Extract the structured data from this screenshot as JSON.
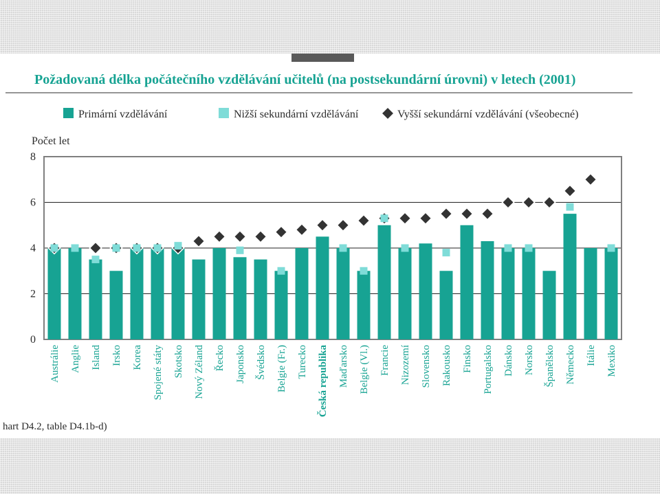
{
  "chart_data": {
    "type": "bar",
    "title": "Požadovaná délka počátečního vzdělávání učitelů (na postsekundární úrovni) v letech (2001)",
    "ylabel": "Počet let",
    "ylim": [
      0,
      8
    ],
    "yticks": [
      "0",
      "2",
      "4",
      "6",
      "8"
    ],
    "grid": true,
    "legend_position": "top",
    "colors": {
      "primary": "#17a393",
      "lower_secondary": "#7fdcd8",
      "upper_secondary": "#333333"
    },
    "categories": [
      "Austrálie",
      "Anglie",
      "Island",
      "Irsko",
      "Korea",
      "Spojené státy",
      "Skotsko",
      "Nový Zéland",
      "Řecko",
      "Japonsko",
      "Švédsko",
      "Belgie (Fr.)",
      "Turecko",
      "Česká republika",
      "Maďarsko",
      "Belgie (Vl.)",
      "Francie",
      "Nizozemí",
      "Slovensko",
      "Rakousko",
      "Finsko",
      "Portugalsko",
      "Dánsko",
      "Norsko",
      "Španělsko",
      "Německo",
      "Itálie",
      "Mexiko"
    ],
    "highlight_category": "Česká republika",
    "series": [
      {
        "name": "Primární vzdělávání",
        "kind": "bar",
        "marker": "square",
        "values": [
          4,
          4,
          3.5,
          3,
          4,
          4,
          4,
          3.5,
          4,
          3.6,
          3.5,
          3,
          4,
          4.5,
          4,
          3,
          5,
          4,
          4.2,
          3,
          5,
          4.3,
          4,
          4,
          3,
          5.5,
          4,
          4
        ]
      },
      {
        "name": "Nižší sekundární vzdělávání",
        "kind": "point",
        "marker": "square",
        "values": [
          4,
          4,
          3.5,
          4,
          4,
          4,
          4.1,
          null,
          null,
          3.9,
          null,
          3,
          null,
          null,
          4,
          3,
          5.3,
          4,
          null,
          3.8,
          null,
          null,
          4,
          4,
          null,
          5.8,
          null,
          4
        ]
      },
      {
        "name": "Vyšší sekundární vzdělávání (všeobecné)",
        "kind": "point",
        "marker": "diamond",
        "values": [
          4,
          null,
          4,
          4,
          4,
          4,
          4,
          4.3,
          4.5,
          4.5,
          4.5,
          4.7,
          4.8,
          5,
          5,
          5.2,
          5.3,
          5.3,
          5.3,
          5.5,
          5.5,
          5.5,
          6,
          6,
          6,
          6.5,
          7,
          null
        ]
      }
    ],
    "source": "hart D4.2, table D4.1b-d)"
  }
}
